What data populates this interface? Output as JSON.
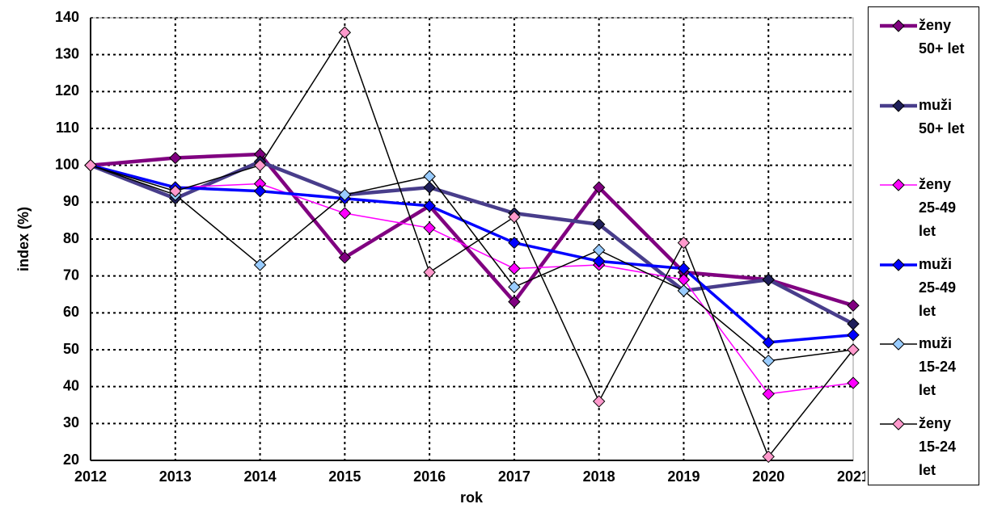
{
  "chart_data": {
    "type": "line",
    "categories": [
      "2012",
      "2013",
      "2014",
      "2015",
      "2016",
      "2017",
      "2018",
      "2019",
      "2020",
      "2021"
    ],
    "x_label": "rok",
    "y_label": "index (%)",
    "ylim": [
      20,
      140
    ],
    "yticks": [
      20,
      30,
      40,
      50,
      60,
      70,
      80,
      90,
      100,
      110,
      120,
      130,
      140
    ],
    "grid": true,
    "legend": "right",
    "series": [
      {
        "name": "ženy 50+ let",
        "color": "#800080",
        "marker_color": "#800080",
        "values": [
          100,
          102,
          103,
          75,
          89,
          63,
          94,
          71,
          69,
          62
        ]
      },
      {
        "name": "muži 50+ let",
        "color": "#483d8b",
        "marker_color": "#1f1f5a",
        "values": [
          100,
          91,
          101,
          92,
          94,
          87,
          84,
          66,
          69,
          57
        ]
      },
      {
        "name": "ženy 25-49 let",
        "color": "#ff00ff",
        "marker_color": "#ff00ff",
        "values": [
          100,
          94,
          95,
          87,
          83,
          72,
          73,
          69,
          38,
          41
        ]
      },
      {
        "name": "muži 25-49 let",
        "color": "#0000ff",
        "marker_color": "#0000ff",
        "values": [
          100,
          94,
          93,
          91,
          89,
          79,
          74,
          72,
          52,
          54
        ]
      },
      {
        "name": "muži 15-24 let",
        "color": "#000000",
        "marker_color": "#99ccff",
        "values": [
          100,
          92,
          73,
          92,
          97,
          67,
          77,
          66,
          47,
          50
        ]
      },
      {
        "name": "ženy 15-24 let",
        "color": "#000000",
        "marker_color": "#ff99cc",
        "values": [
          100,
          93,
          100,
          136,
          71,
          86,
          36,
          79,
          21,
          50
        ]
      }
    ]
  }
}
